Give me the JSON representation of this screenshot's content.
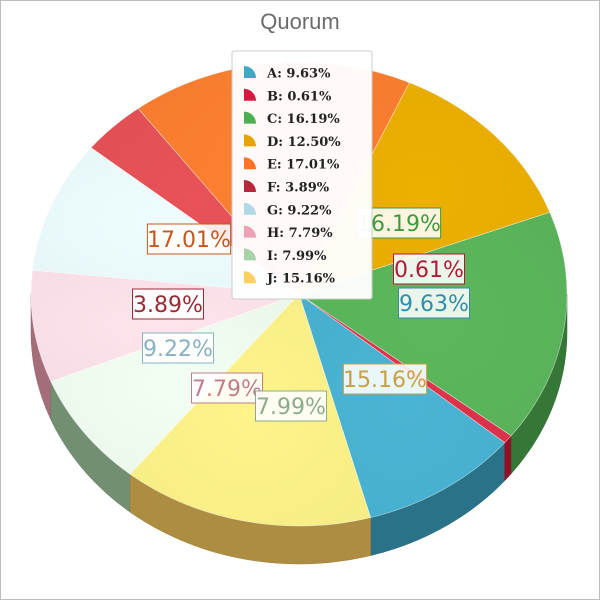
{
  "chart_data": {
    "type": "pie",
    "style": "3d",
    "title": "Quorum",
    "legend": "top-center",
    "categories": [
      "A",
      "B",
      "C",
      "D",
      "E",
      "F",
      "G",
      "H",
      "I",
      "J"
    ],
    "values": [
      9.63,
      0.61,
      16.19,
      12.5,
      17.01,
      3.89,
      9.22,
      7.79,
      7.99,
      15.16
    ],
    "legend_labels": [
      "A: 9.63%",
      "B: 0.61%",
      "C: 16.19%",
      "D: 12.50%",
      "E: 17.01%",
      "F: 3.89%",
      "G: 9.22%",
      "H: 7.79%",
      "I: 7.99%",
      "J: 15.16%"
    ],
    "data_labels": [
      "9.63%",
      "0.61%",
      "16.19%",
      "12.50%",
      "17.01%",
      "3.89%",
      "9.22%",
      "7.79%",
      "7.99%",
      "15.16%"
    ],
    "colors": [
      "#3ea8c8",
      "#d8183c",
      "#4caf50",
      "#e6a300",
      "#ff7324",
      "#b8283c",
      "#b0d8e6",
      "#f0a0b4",
      "#a8d2a8",
      "#ffd060"
    ],
    "face_colors": [
      "#4ab4d4",
      "#e0344c",
      "#5cb85c",
      "#ecb000",
      "#ff8030",
      "#e85258",
      "#eefeff",
      "#ffe4ec",
      "#f2fff2",
      "#fff48a"
    ],
    "label_colors": [
      "#2f8ea8",
      "#b01a36",
      "#3f9a3f",
      "#c08a00",
      "#c8561a",
      "#9a2a34",
      "#8ab0c4",
      "#c07c8c",
      "#8aac8a",
      "#c8a040"
    ]
  }
}
